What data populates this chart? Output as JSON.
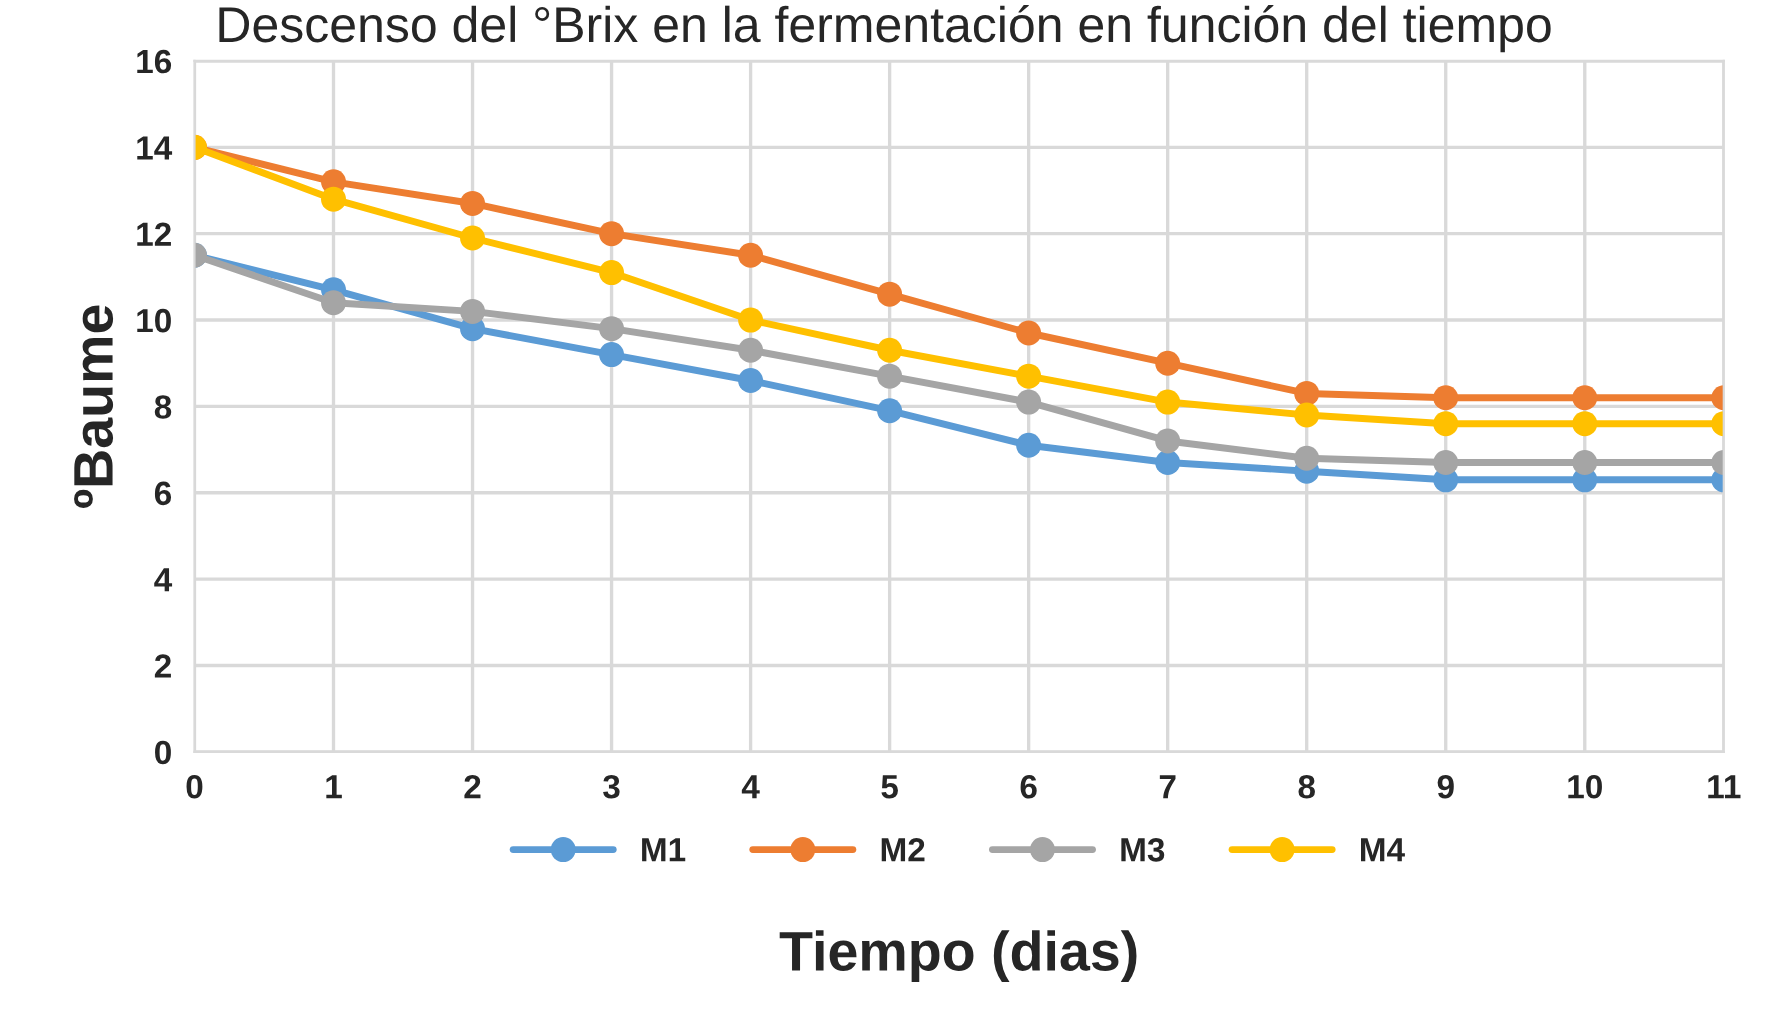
{
  "chart_data": {
    "type": "line",
    "title": "Descenso del °Brix en la fermentación en función del tiempo",
    "xlabel": "Tiempo (dias)",
    "ylabel": "ºBaume",
    "x": [
      0,
      1,
      2,
      3,
      4,
      5,
      6,
      7,
      8,
      9,
      10,
      11
    ],
    "series": [
      {
        "name": "M1",
        "color": "#5b9bd5",
        "values": [
          11.5,
          10.7,
          9.8,
          9.2,
          8.6,
          7.9,
          7.1,
          6.7,
          6.5,
          6.3,
          6.3,
          6.3
        ]
      },
      {
        "name": "M2",
        "color": "#ed7d31",
        "values": [
          14,
          13.2,
          12.7,
          12.0,
          11.5,
          10.6,
          9.7,
          9.0,
          8.3,
          8.2,
          8.2,
          8.2
        ]
      },
      {
        "name": "M3",
        "color": "#a5a5a5",
        "values": [
          11.5,
          10.4,
          10.2,
          9.8,
          9.3,
          8.7,
          8.1,
          7.2,
          6.8,
          6.7,
          6.7,
          6.7
        ]
      },
      {
        "name": "M4",
        "color": "#ffc000",
        "values": [
          14,
          12.8,
          11.9,
          11.1,
          10.0,
          9.3,
          8.7,
          8.1,
          7.8,
          7.6,
          7.6,
          7.6
        ]
      }
    ],
    "xlim": [
      0,
      11
    ],
    "xticks": [
      0,
      1,
      2,
      3,
      4,
      5,
      6,
      7,
      8,
      9,
      10,
      11
    ],
    "ylim": [
      0,
      16
    ],
    "yticks": [
      0,
      2,
      4,
      6,
      8,
      10,
      12,
      14,
      16
    ],
    "grid": true,
    "legend": "bottom",
    "marker": "circle",
    "line_style": "solid"
  }
}
